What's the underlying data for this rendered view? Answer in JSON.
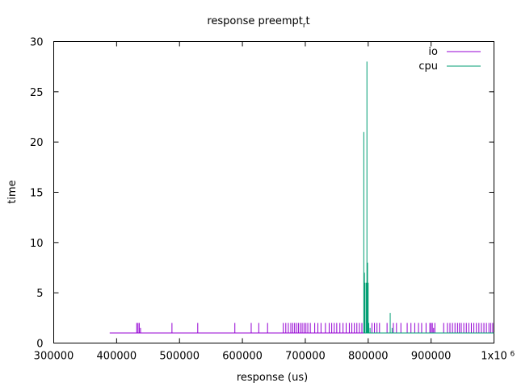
{
  "chart_data": {
    "type": "line",
    "title": "response preempt",
    "title_subscript": "r",
    "title_suffix": "t",
    "xlabel": "response (us)",
    "ylabel": "time",
    "xlim": [
      300000,
      1000000
    ],
    "ylim": [
      0,
      30
    ],
    "x_ticks": [
      300000,
      400000,
      500000,
      600000,
      700000,
      800000,
      900000,
      1000000
    ],
    "x_tick_labels": [
      "300000",
      "400000",
      "500000",
      "600000",
      "700000",
      "800000",
      "900000",
      "1x10"
    ],
    "x_tick_exponent": "6",
    "y_ticks": [
      0,
      5,
      10,
      15,
      20,
      25,
      30
    ],
    "y_tick_labels": [
      "0",
      "5",
      "10",
      "15",
      "20",
      "25",
      "30"
    ],
    "grid": false,
    "legend_position": "top-right",
    "series": [
      {
        "name": "io",
        "color": "#9400d3",
        "baseline": 1,
        "baseline_x_range": [
          389000,
          1000000
        ],
        "spikes": [
          [
            432000,
            2
          ],
          [
            434000,
            2
          ],
          [
            436000,
            2
          ],
          [
            438000,
            1.5
          ],
          [
            488000,
            2
          ],
          [
            529000,
            2
          ],
          [
            588000,
            2
          ],
          [
            614000,
            2
          ],
          [
            626000,
            2
          ],
          [
            640000,
            2
          ],
          [
            665000,
            2
          ],
          [
            669000,
            2
          ],
          [
            673000,
            2
          ],
          [
            677000,
            2
          ],
          [
            680000,
            2
          ],
          [
            683000,
            2
          ],
          [
            686000,
            2
          ],
          [
            689000,
            2
          ],
          [
            692000,
            2
          ],
          [
            695000,
            2
          ],
          [
            698000,
            2
          ],
          [
            701000,
            2
          ],
          [
            704000,
            2
          ],
          [
            708000,
            2
          ],
          [
            715000,
            2
          ],
          [
            720000,
            2
          ],
          [
            725000,
            2
          ],
          [
            732000,
            2
          ],
          [
            738000,
            2
          ],
          [
            742000,
            2
          ],
          [
            746000,
            2
          ],
          [
            750000,
            2
          ],
          [
            755000,
            2
          ],
          [
            760000,
            2
          ],
          [
            765000,
            2
          ],
          [
            770000,
            2
          ],
          [
            774000,
            2
          ],
          [
            778000,
            2
          ],
          [
            782000,
            2
          ],
          [
            786000,
            2
          ],
          [
            790000,
            2
          ],
          [
            806000,
            2
          ],
          [
            810000,
            2
          ],
          [
            814000,
            2
          ],
          [
            818000,
            2
          ],
          [
            830000,
            2
          ],
          [
            840000,
            2
          ],
          [
            845000,
            2
          ],
          [
            852000,
            2
          ],
          [
            862000,
            2
          ],
          [
            868000,
            2
          ],
          [
            874000,
            2
          ],
          [
            880000,
            2
          ],
          [
            885000,
            2
          ],
          [
            892000,
            2
          ],
          [
            898000,
            2
          ],
          [
            900000,
            2
          ],
          [
            902000,
            2
          ],
          [
            904000,
            1.5
          ],
          [
            906000,
            2
          ],
          [
            920000,
            2
          ],
          [
            926000,
            2
          ],
          [
            930000,
            2
          ],
          [
            934000,
            2
          ],
          [
            938000,
            2
          ],
          [
            942000,
            2
          ],
          [
            945000,
            2
          ],
          [
            948000,
            2
          ],
          [
            952000,
            2
          ],
          [
            956000,
            2
          ],
          [
            960000,
            2
          ],
          [
            964000,
            2
          ],
          [
            968000,
            2
          ],
          [
            972000,
            2
          ],
          [
            976000,
            2
          ],
          [
            980000,
            2
          ],
          [
            984000,
            2
          ],
          [
            988000,
            2
          ],
          [
            992000,
            2
          ],
          [
            995000,
            2
          ],
          [
            998000,
            2
          ]
        ]
      },
      {
        "name": "cpu",
        "color": "#009e73",
        "baseline": 1,
        "baseline_x_range": [
          793000,
          1000000
        ],
        "spikes": [
          [
            793000,
            21
          ],
          [
            794000,
            7
          ],
          [
            795000,
            6
          ],
          [
            797000,
            6
          ],
          [
            798000,
            28
          ],
          [
            799000,
            8
          ],
          [
            800000,
            6
          ],
          [
            801000,
            2
          ],
          [
            803000,
            1.5
          ],
          [
            835000,
            3
          ],
          [
            838000,
            1.5
          ]
        ]
      }
    ]
  }
}
